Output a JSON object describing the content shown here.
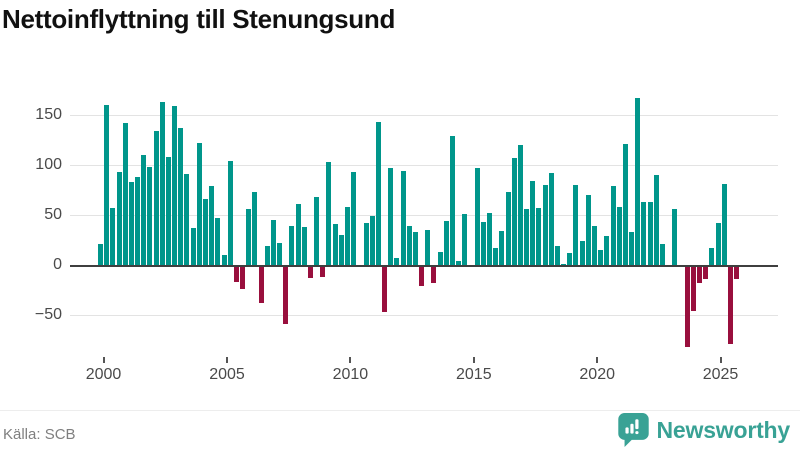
{
  "title": "Nettoinflyttning till Stenungsund",
  "footer": {
    "source": "Källa: SCB",
    "brand": "Newsworthy"
  },
  "colors": {
    "positive": "#00968b",
    "negative": "#990f3d",
    "brand_teal": "#39a295"
  },
  "chart_data": {
    "type": "bar",
    "title": "Nettoinflyttning till Stenungsund",
    "frequency": "quarterly",
    "start_period": "2000-Q1",
    "end_period": "2025-Q4",
    "xlabel": "",
    "ylabel": "",
    "ylim": [
      -90,
      175
    ],
    "grid": true,
    "y_ticks": [
      150,
      100,
      50,
      0,
      -50
    ],
    "y_tick_labels": [
      "150",
      "100",
      "50",
      "0",
      "−50"
    ],
    "x_tick_labels": [
      "2000",
      "2005",
      "2010",
      "2015",
      "2020",
      "2025"
    ],
    "positive_color": "#00968b",
    "negative_color": "#990f3d",
    "values": [
      22,
      161,
      58,
      94,
      143,
      84,
      89,
      111,
      99,
      135,
      164,
      109,
      160,
      138,
      92,
      38,
      123,
      67,
      80,
      48,
      11,
      105,
      -15,
      -22,
      57,
      74,
      -36,
      20,
      46,
      23,
      -57,
      40,
      62,
      39,
      -11,
      69,
      -10,
      104,
      42,
      31,
      59,
      94,
      0,
      43,
      50,
      144,
      -45,
      98,
      8,
      95,
      40,
      34,
      -19,
      36,
      -16,
      14,
      45,
      130,
      5,
      52,
      0,
      98,
      44,
      53,
      18,
      35,
      74,
      108,
      121,
      57,
      85,
      58,
      81,
      93,
      20,
      2,
      13,
      81,
      25,
      71,
      40,
      16,
      30,
      80,
      59,
      122,
      34,
      168,
      64,
      64,
      91,
      22,
      0,
      57,
      0,
      -80,
      -44,
      -16,
      -12,
      18,
      43,
      82,
      -77,
      -12
    ]
  }
}
